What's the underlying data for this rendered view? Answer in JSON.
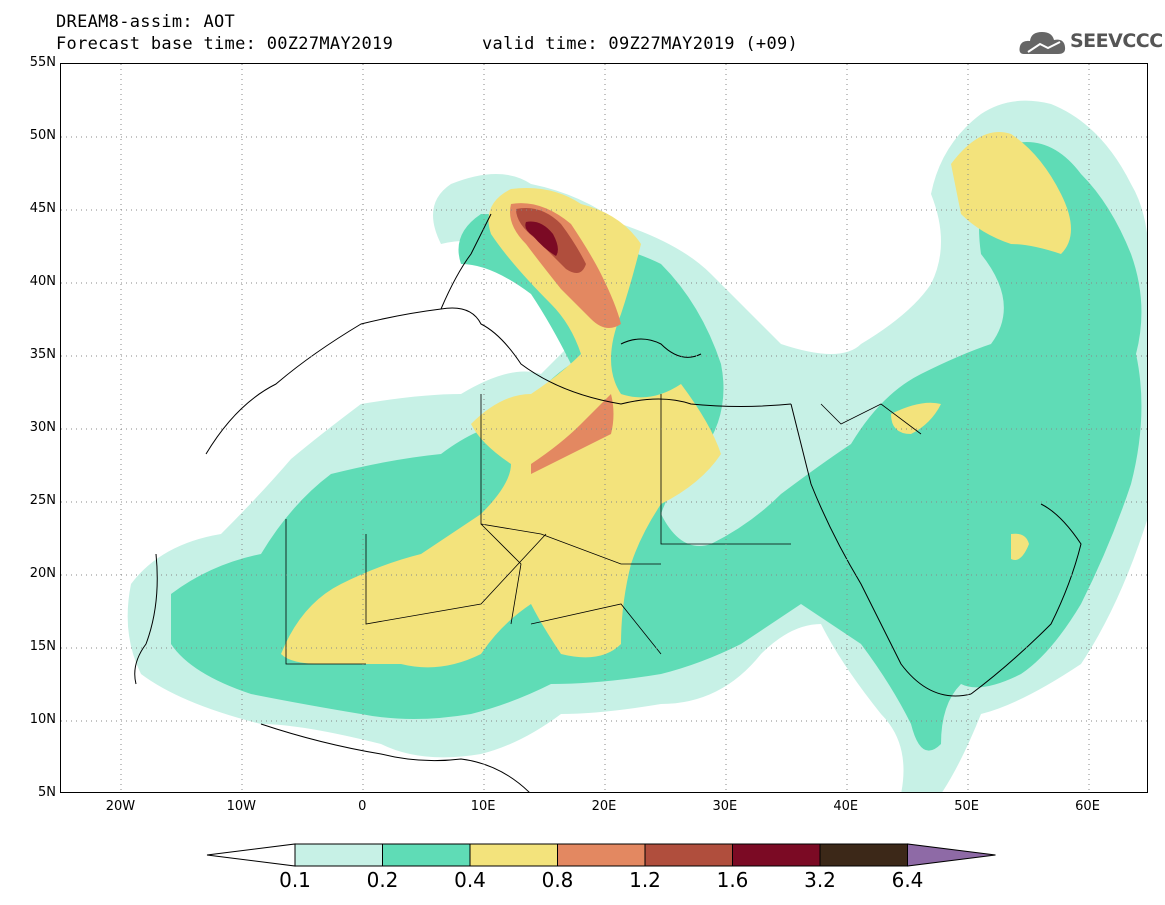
{
  "header": {
    "title_line1": "DREAM8-assim: AOT",
    "title_line2": "Forecast base time: 00Z27MAY2019",
    "valid_time": "valid time: 09Z27MAY2019 (+09)",
    "logo_text": "SEEVCCC"
  },
  "axes": {
    "lat_labels": [
      "55N",
      "50N",
      "45N",
      "40N",
      "35N",
      "30N",
      "25N",
      "20N",
      "15N",
      "10N",
      "5N"
    ],
    "lon_labels": [
      "20W",
      "10W",
      "0",
      "10E",
      "20E",
      "30E",
      "40E",
      "50E",
      "60E"
    ],
    "lat_range": [
      5,
      55
    ],
    "lon_range": [
      -25,
      65
    ]
  },
  "colorbar": {
    "levels": [
      "0.1",
      "0.2",
      "0.4",
      "0.8",
      "1.2",
      "1.6",
      "3.2",
      "6.4"
    ],
    "colors": [
      "#ffffff",
      "#c7f1e6",
      "#5fdcb6",
      "#f3e37c",
      "#e38861",
      "#b04e3d",
      "#7b0a24",
      "#3c2818",
      "#8e6aa6"
    ]
  },
  "chart_data": {
    "type": "heatmap",
    "variable": "AOT",
    "model": "DREAM8-assim",
    "base_time": "00Z27MAY2019",
    "valid_time": "09Z27MAY2019",
    "lead_hours": 9,
    "xlim": [
      -25,
      65
    ],
    "ylim": [
      5,
      55
    ]
  }
}
